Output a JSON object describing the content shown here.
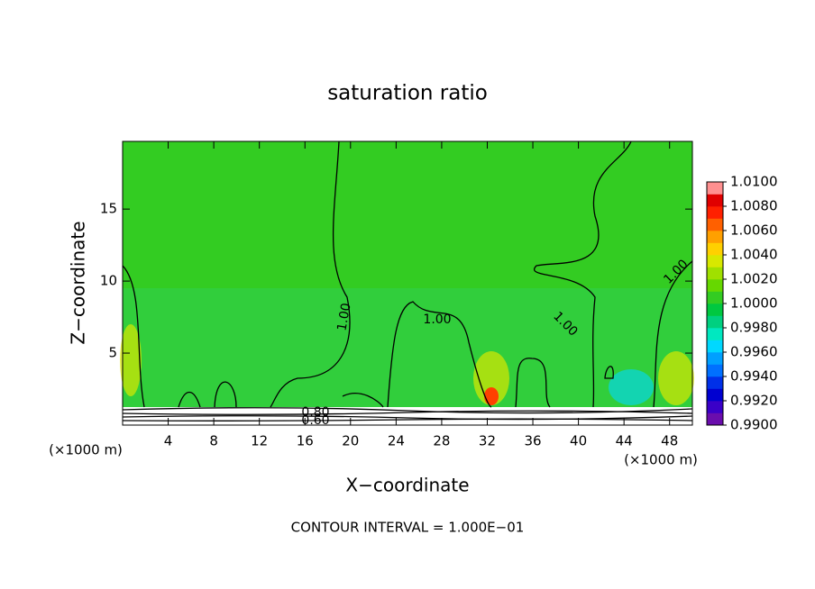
{
  "chart_data": {
    "type": "contour",
    "title": "saturation ratio",
    "x_label": "X−coordinate",
    "y_label": "Z−coordinate",
    "x_unit": "(×1000 m)",
    "y_unit": "(×1000 m)",
    "xlim": [
      0,
      50
    ],
    "ylim": [
      0,
      19.7
    ],
    "xticks": [
      4,
      8,
      12,
      16,
      20,
      24,
      28,
      32,
      36,
      40,
      44,
      48
    ],
    "yticks": [
      5,
      10,
      15
    ],
    "contour_labels": [
      "1.00",
      "1.00",
      "1.00",
      "1.00",
      "0.80",
      "0.60"
    ],
    "note": "CONTOUR INTERVAL = 1.000E−01",
    "colorbar": {
      "lim": [
        0.99,
        1.01
      ],
      "ticks": [
        {
          "value": 0.99,
          "label": "0.9900"
        },
        {
          "value": 0.992,
          "label": "0.9920"
        },
        {
          "value": 0.994,
          "label": "0.9940"
        },
        {
          "value": 0.996,
          "label": "0.9960"
        },
        {
          "value": 0.998,
          "label": "0.9980"
        },
        {
          "value": 1.0,
          "label": "1.0000"
        },
        {
          "value": 1.002,
          "label": "1.0020"
        },
        {
          "value": 1.004,
          "label": "1.0040"
        },
        {
          "value": 1.006,
          "label": "1.0060"
        },
        {
          "value": 1.008,
          "label": "1.0080"
        },
        {
          "value": 1.01,
          "label": "1.0100"
        }
      ],
      "colors": [
        "#6a0dad",
        "#3a00c8",
        "#0000d0",
        "#0030e8",
        "#0070ff",
        "#00a0ff",
        "#00d8ff",
        "#00e8c0",
        "#00d080",
        "#00c840",
        "#33cc22",
        "#66d800",
        "#a0e000",
        "#d8e800",
        "#ffd000",
        "#ffa000",
        "#ff6000",
        "#ff2000",
        "#e00000",
        "#ff9090"
      ]
    }
  }
}
